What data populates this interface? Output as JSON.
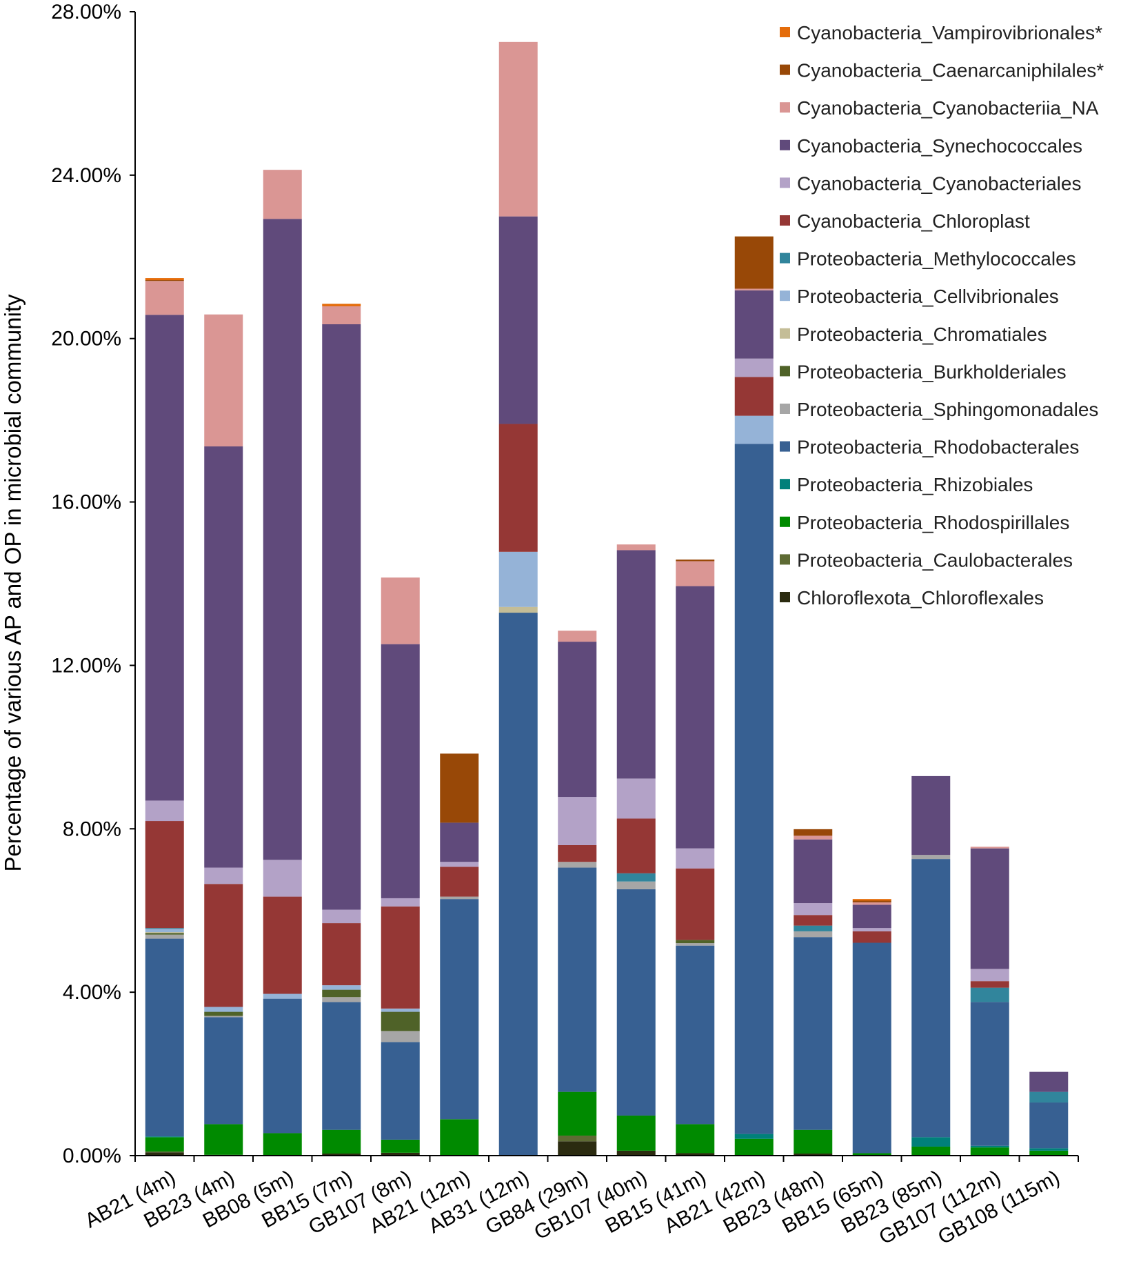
{
  "chart_data": {
    "type": "bar",
    "stacked": true,
    "title": "",
    "xlabel": "",
    "ylabel": "Percentage of various AP and OP in microbial community",
    "ylim": [
      0,
      28
    ],
    "yticks": [
      0,
      4,
      8,
      12,
      16,
      20,
      24,
      28
    ],
    "ytick_labels": [
      "0.00%",
      "4.00%",
      "8.00%",
      "12.00%",
      "16.00%",
      "20.00%",
      "24.00%",
      "28.00%"
    ],
    "grid": false,
    "legend_position": "top-right",
    "categories": [
      "AB21 (4m)",
      "BB23 (4m)",
      "BB08 (5m)",
      "BB15 (7m)",
      "GB107 (8m)",
      "AB21 (12m)",
      "AB31 (12m)",
      "GB84 (29m)",
      "GB107 (40m)",
      "BB15 (41m)",
      "AB21 (42m)",
      "BB23 (48m)",
      "BB15 (65m)",
      "BB23 (85m)",
      "GB107 (112m)",
      "GB108 (115m)"
    ],
    "series": [
      {
        "name": "Chloroflexota_Chloroflexales",
        "color": "#2B2B10",
        "values": [
          0.08,
          0.02,
          0,
          0.05,
          0.07,
          0,
          0,
          0.35,
          0.12,
          0.06,
          0,
          0.05,
          0,
          0,
          0,
          0
        ]
      },
      {
        "name": "Proteobacteria_Caulobacterales",
        "color": "#5E6B34",
        "values": [
          0.02,
          0,
          0,
          0,
          0,
          0,
          0,
          0.14,
          0,
          0,
          0,
          0,
          0,
          0,
          0,
          0
        ]
      },
      {
        "name": "Proteobacteria_Rhodospirillales",
        "color": "#008A00",
        "values": [
          0.35,
          0.75,
          0.55,
          0.58,
          0.32,
          0.89,
          0,
          1.07,
          0.86,
          0.71,
          0.41,
          0.58,
          0.06,
          0.22,
          0.2,
          0.12
        ]
      },
      {
        "name": "Proteobacteria_Rhizobiales",
        "color": "#00807A",
        "values": [
          0.02,
          0,
          0,
          0,
          0,
          0,
          0,
          0,
          0,
          0,
          0.12,
          0,
          0,
          0.23,
          0.04,
          0.06
        ]
      },
      {
        "name": "Proteobacteria_Rhodobacterales",
        "color": "#376092",
        "values": [
          4.84,
          2.62,
          3.29,
          3.13,
          2.39,
          5.39,
          13.29,
          5.49,
          5.54,
          4.37,
          16.89,
          4.72,
          5.15,
          6.81,
          3.52,
          1.12
        ]
      },
      {
        "name": "Proteobacteria_Sphingomonadales",
        "color": "#A6A6A6",
        "values": [
          0.1,
          0.03,
          0,
          0.12,
          0.27,
          0.06,
          0,
          0.14,
          0.19,
          0.06,
          0,
          0.14,
          0,
          0.1,
          0,
          0
        ]
      },
      {
        "name": "Proteobacteria_Burkholderiales",
        "color": "#4F6228",
        "values": [
          0.04,
          0.1,
          0,
          0.18,
          0.47,
          0,
          0,
          0,
          0,
          0.08,
          0,
          0,
          0,
          0,
          0,
          0
        ]
      },
      {
        "name": "Proteobacteria_Chromatiales",
        "color": "#C4BD97",
        "values": [
          0.02,
          0,
          0,
          0,
          0,
          0,
          0.14,
          0,
          0,
          0,
          0,
          0,
          0,
          0,
          0,
          0
        ]
      },
      {
        "name": "Proteobacteria_Cellvibrionales",
        "color": "#95B3D7",
        "values": [
          0.08,
          0.12,
          0.12,
          0.11,
          0.08,
          0,
          1.35,
          0,
          0,
          0,
          0.69,
          0,
          0,
          0,
          0,
          0
        ]
      },
      {
        "name": "Proteobacteria_Methylococcales",
        "color": "#31859C",
        "values": [
          0.02,
          0,
          0,
          0,
          0,
          0,
          0,
          0,
          0.2,
          0,
          0,
          0.14,
          0,
          0,
          0.35,
          0.26
        ]
      },
      {
        "name": "Cyanobacteria_Chloroplast",
        "color": "#953735",
        "values": [
          2.62,
          3.01,
          2.38,
          1.52,
          2.5,
          0.73,
          3.13,
          0.41,
          1.34,
          1.75,
          0.95,
          0.26,
          0.28,
          0,
          0.16,
          0
        ]
      },
      {
        "name": "Cyanobacteria_Cyanobacteriales",
        "color": "#B3A2C7",
        "values": [
          0.5,
          0.4,
          0.9,
          0.33,
          0.2,
          0.12,
          0,
          1.18,
          0.98,
          0.49,
          0.45,
          0.29,
          0.08,
          0,
          0.3,
          0
        ]
      },
      {
        "name": "Cyanobacteria_Synechococcales",
        "color": "#604A7B",
        "values": [
          11.89,
          10.31,
          15.69,
          14.33,
          6.22,
          0.96,
          5.08,
          3.8,
          5.59,
          6.42,
          1.67,
          1.56,
          0.57,
          1.93,
          2.95,
          0.49
        ]
      },
      {
        "name": "Cyanobacteria_Cyanobacteriia_NA",
        "color": "#DA9694",
        "values": [
          0.83,
          3.23,
          1.2,
          0.44,
          1.63,
          0,
          4.27,
          0.27,
          0.14,
          0.61,
          0.04,
          0.09,
          0.06,
          0,
          0.04,
          0
        ]
      },
      {
        "name": "Cyanobacteria_Caenarcaniphilales*",
        "color": "#984807",
        "values": [
          0.02,
          0,
          0,
          0,
          0,
          1.69,
          0,
          0,
          0,
          0.04,
          1.28,
          0.16,
          0.04,
          0,
          0,
          0
        ]
      },
      {
        "name": "Cyanobacteria_Vampirovibrionales*",
        "color": "#E46C0A",
        "values": [
          0.05,
          0,
          0,
          0.06,
          0,
          0,
          0,
          0,
          0,
          0,
          0,
          0,
          0.04,
          0,
          0,
          0
        ]
      }
    ]
  }
}
